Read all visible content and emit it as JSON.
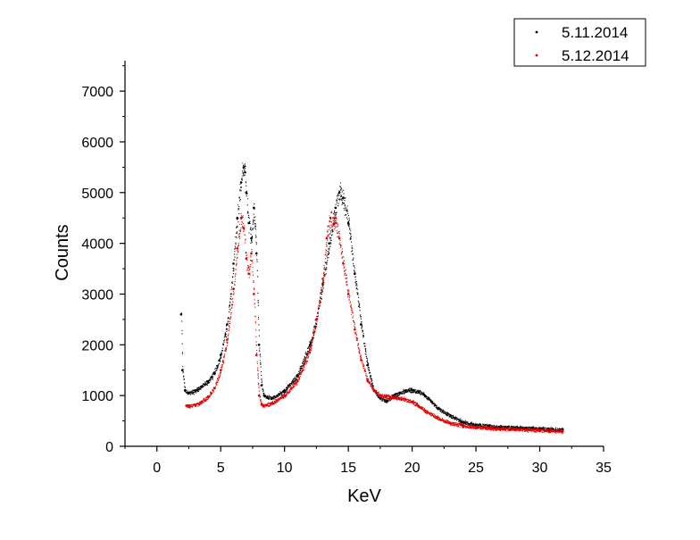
{
  "chart_data": {
    "type": "scatter",
    "title": "",
    "xlabel": "KeV",
    "ylabel": "Counts",
    "xlim": [
      -2.5,
      35
    ],
    "ylim": [
      0,
      7600
    ],
    "x_ticks": [
      0,
      5,
      10,
      15,
      20,
      25,
      30,
      35
    ],
    "y_ticks": [
      0,
      1000,
      2000,
      3000,
      4000,
      5000,
      6000,
      7000
    ],
    "grid": false,
    "legend": "top-right",
    "series": [
      {
        "name": "5.11.2014",
        "color": "#000000",
        "x": [
          1.9,
          2.0,
          2.2,
          2.5,
          3.0,
          3.5,
          4.0,
          4.5,
          5.0,
          5.5,
          6.0,
          6.3,
          6.6,
          6.8,
          6.9,
          7.0,
          7.2,
          7.4,
          7.6,
          7.8,
          8.0,
          8.2,
          8.4,
          9.0,
          10.0,
          11.0,
          12.0,
          12.5,
          13.0,
          13.5,
          14.0,
          14.3,
          14.6,
          15.0,
          15.5,
          16.0,
          16.5,
          17.0,
          17.5,
          18.0,
          18.5,
          19.0,
          19.5,
          20.0,
          20.5,
          21.0,
          21.5,
          22.0,
          23.0,
          24.0,
          25.0,
          26.0,
          27.0,
          28.0,
          29.0,
          30.0,
          31.0,
          31.8
        ],
        "y": [
          2600,
          1500,
          1100,
          1050,
          1100,
          1180,
          1280,
          1450,
          1800,
          2400,
          3600,
          4500,
          5200,
          5500,
          5400,
          5000,
          4400,
          4100,
          4700,
          3800,
          2000,
          1200,
          1000,
          950,
          1100,
          1400,
          2000,
          2500,
          3200,
          4000,
          4700,
          5000,
          4900,
          4400,
          3400,
          2400,
          1600,
          1100,
          950,
          900,
          1000,
          1050,
          1100,
          1100,
          1080,
          1000,
          880,
          750,
          600,
          480,
          420,
          400,
          380,
          370,
          360,
          350,
          340,
          330
        ]
      },
      {
        "name": "5.12.2014",
        "color": "#e00000",
        "x": [
          2.3,
          2.5,
          3.0,
          3.5,
          4.0,
          4.5,
          5.0,
          5.5,
          6.0,
          6.3,
          6.6,
          6.8,
          7.0,
          7.2,
          7.4,
          7.6,
          7.8,
          8.0,
          8.2,
          8.4,
          9.0,
          10.0,
          11.0,
          12.0,
          12.5,
          13.0,
          13.3,
          13.6,
          14.0,
          14.3,
          14.6,
          15.0,
          15.5,
          16.0,
          16.5,
          17.0,
          17.5,
          18.0,
          18.5,
          19.0,
          19.5,
          20.0,
          20.5,
          21.0,
          22.0,
          23.0,
          24.0,
          25.0,
          26.0,
          27.0,
          28.0,
          29.0,
          30.0,
          31.0,
          31.8
        ],
        "y": [
          800,
          800,
          820,
          880,
          980,
          1150,
          1500,
          2100,
          3100,
          3900,
          4500,
          4300,
          3700,
          3400,
          3800,
          3000,
          1800,
          1000,
          820,
          800,
          850,
          1000,
          1300,
          1900,
          2500,
          3300,
          4100,
          4500,
          4400,
          4100,
          3600,
          3000,
          2300,
          1700,
          1300,
          1100,
          1000,
          980,
          970,
          950,
          920,
          880,
          800,
          700,
          560,
          460,
          410,
          380,
          360,
          350,
          340,
          330,
          320,
          310,
          300
        ]
      }
    ]
  }
}
